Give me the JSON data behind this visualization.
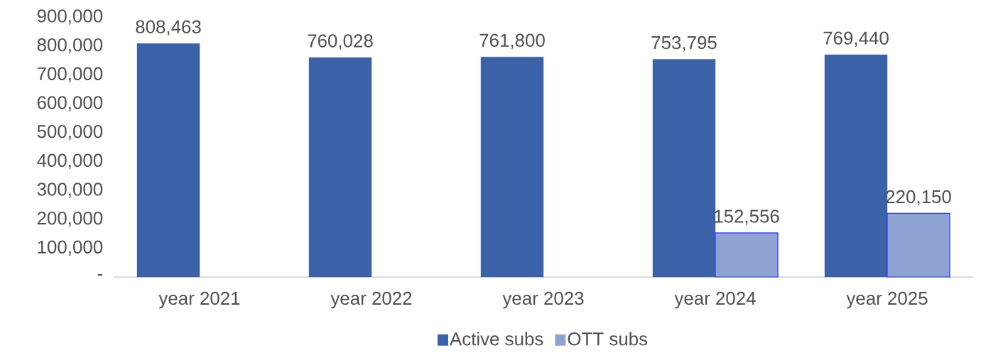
{
  "chart_data": {
    "type": "bar",
    "categories": [
      "year 2021",
      "year 2022",
      "year 2023",
      "year 2024",
      "year 2025"
    ],
    "series": [
      {
        "name": "Active subs",
        "color": "#3b62a8",
        "values": [
          808463,
          760028,
          761800,
          753795,
          769440
        ],
        "value_labels": [
          "808,463",
          "760,028",
          "761,800",
          "753,795",
          "769,440"
        ]
      },
      {
        "name": "OTT subs",
        "color": "#8fa3d3",
        "values": [
          null,
          null,
          null,
          152556,
          220150
        ],
        "value_labels": [
          null,
          null,
          null,
          "152,556",
          "220,150"
        ]
      }
    ],
    "ylim": [
      0,
      900000
    ],
    "yticks": [
      {
        "value": 0,
        "label": "-"
      },
      {
        "value": 100000,
        "label": "100,000"
      },
      {
        "value": 200000,
        "label": "200,000"
      },
      {
        "value": 300000,
        "label": "300,000"
      },
      {
        "value": 400000,
        "label": "400,000"
      },
      {
        "value": 500000,
        "label": "500,000"
      },
      {
        "value": 600000,
        "label": "600,000"
      },
      {
        "value": 700000,
        "label": "700,000"
      },
      {
        "value": 800000,
        "label": "800,000"
      },
      {
        "value": 900000,
        "label": "900,000"
      }
    ],
    "grid": false,
    "legend": "bottom"
  }
}
